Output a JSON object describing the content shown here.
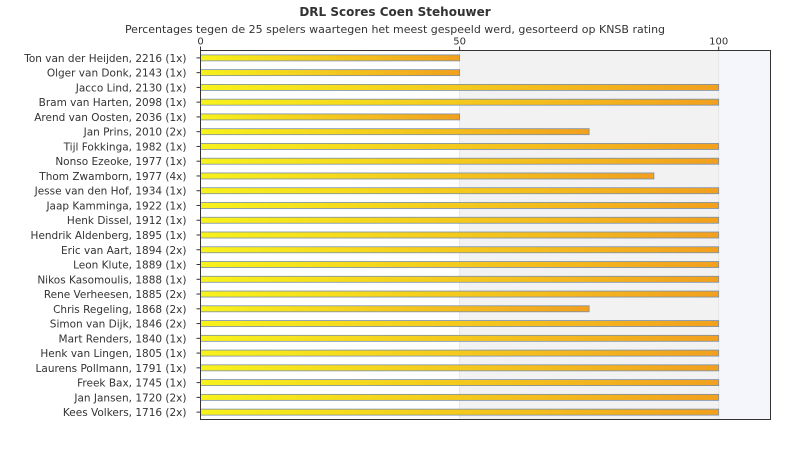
{
  "chart_data": {
    "type": "bar",
    "orientation": "horizontal",
    "title": "DRL Scores Coen Stehouwer",
    "subtitle": "Percentages tegen de 25 spelers waartegen het meest gespeeld werd, gesorteerd op KNSB rating",
    "xlim": [
      0,
      110
    ],
    "xticks": [
      0,
      50,
      100
    ],
    "grid": false,
    "legend": "none",
    "colors": {
      "bar_start": "#f7f21c",
      "bar_end": "#f2a01e",
      "bar_stroke": "#7a8fa8",
      "band": "#f2f2f2",
      "band_alt": "#f4f6fb"
    },
    "categories": [
      "Ton van der Heijden, 2216 (1x)",
      "Olger van Donk, 2143 (1x)",
      "Jacco Lind, 2130 (1x)",
      "Bram van Harten, 2098 (1x)",
      "Arend van Oosten, 2036 (1x)",
      "Jan Prins, 2010 (2x)",
      "Tijl Fokkinga, 1982 (1x)",
      "Nonso Ezeoke, 1977 (1x)",
      "Thom Zwamborn, 1977 (4x)",
      "Jesse van den Hof, 1934 (1x)",
      "Jaap Kamminga, 1922 (1x)",
      "Henk Dissel, 1912 (1x)",
      "Hendrik Aldenberg, 1895 (1x)",
      "Eric van Aart, 1894 (2x)",
      "Leon Klute, 1889 (1x)",
      "Nikos Kasomoulis, 1888 (1x)",
      "Rene Verheesen, 1885 (2x)",
      "Chris Regeling, 1868 (2x)",
      "Simon van Dijk, 1846 (2x)",
      "Mart Renders, 1840 (1x)",
      "Henk van Lingen, 1805 (1x)",
      "Laurens Pollmann, 1791 (1x)",
      "Freek Bax, 1745 (1x)",
      "Jan Jansen, 1720 (2x)",
      "Kees Volkers, 1716 (2x)"
    ],
    "values": [
      50,
      50,
      100,
      100,
      50,
      75,
      100,
      100,
      87.5,
      100,
      100,
      100,
      100,
      100,
      100,
      100,
      100,
      75,
      100,
      100,
      100,
      100,
      100,
      100,
      100
    ]
  }
}
